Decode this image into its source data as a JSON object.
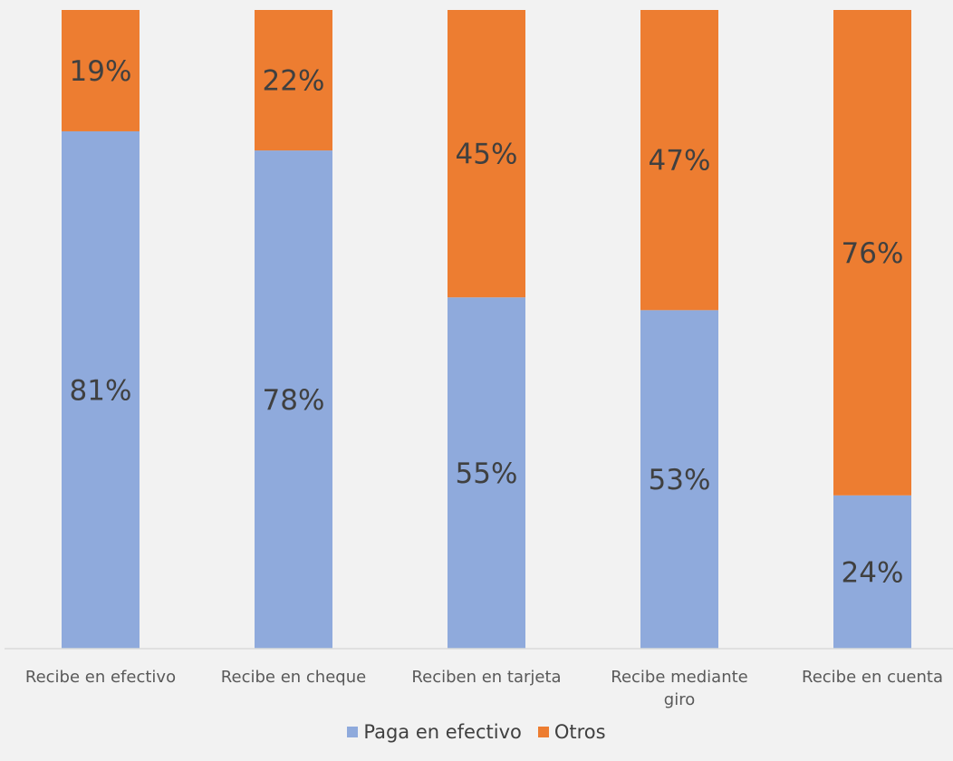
{
  "chart_data": {
    "type": "bar",
    "stacked": true,
    "percent": true,
    "categories": [
      [
        "Recibe en efectivo"
      ],
      [
        "Recibe en cheque"
      ],
      [
        "Reciben en tarjeta"
      ],
      [
        "Recibe mediante",
        "giro"
      ],
      [
        "Recibe en cuenta"
      ]
    ],
    "series": [
      {
        "name": "Paga en efectivo",
        "values": [
          81,
          78,
          55,
          53,
          24
        ],
        "labels": [
          "81%",
          "78%",
          "55%",
          "53%",
          "24%"
        ],
        "color": "#8faadc"
      },
      {
        "name": "Otros",
        "values": [
          19,
          22,
          45,
          47,
          76
        ],
        "labels": [
          "19%",
          "22%",
          "45%",
          "47%",
          "76%"
        ],
        "color": "#ed7d31"
      }
    ],
    "ylim": [
      0,
      100
    ],
    "legend_position": "bottom",
    "grid": false
  }
}
